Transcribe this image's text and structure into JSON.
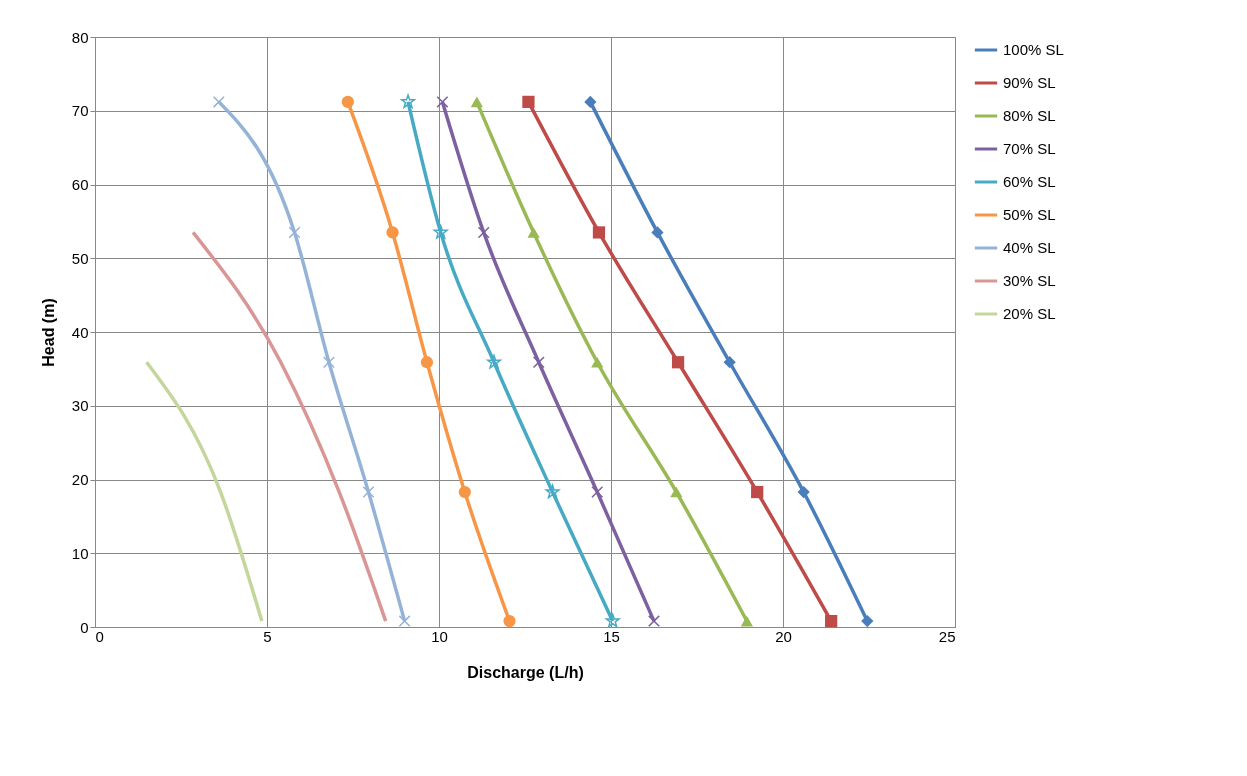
{
  "chart_data": {
    "type": "line",
    "xlabel": "Discharge (L/h)",
    "ylabel": "Head (m)",
    "xlim": [
      0,
      25
    ],
    "xticks": [
      0,
      5,
      10,
      15,
      20,
      25
    ],
    "ylim": [
      0,
      80
    ],
    "yticks": [
      0,
      10,
      20,
      30,
      40,
      50,
      60,
      70,
      80
    ],
    "grid": true,
    "legend": "right",
    "series": [
      {
        "name": "100% SL",
        "color": "#4a7ebb",
        "marker": "diamond",
        "x": [
          14.4,
          16.35,
          18.45,
          20.6,
          22.45
        ],
        "values": [
          71.2,
          53.5,
          35.9,
          18.3,
          0.8
        ]
      },
      {
        "name": "90% SL",
        "color": "#be4b48",
        "marker": "square",
        "x": [
          12.6,
          14.65,
          16.95,
          19.25,
          21.4
        ],
        "values": [
          71.2,
          53.5,
          35.9,
          18.3,
          0.8
        ]
      },
      {
        "name": "80% SL",
        "color": "#98b954",
        "marker": "triangle",
        "x": [
          11.1,
          12.75,
          14.6,
          16.9,
          18.95
        ],
        "values": [
          71.2,
          53.5,
          35.9,
          18.3,
          0.8
        ]
      },
      {
        "name": "70% SL",
        "color": "#7d60a0",
        "marker": "cross",
        "x": [
          10.1,
          11.3,
          12.9,
          14.6,
          16.25
        ],
        "values": [
          71.2,
          53.5,
          35.9,
          18.3,
          0.8
        ]
      },
      {
        "name": "60% SL",
        "color": "#46aac5",
        "marker": "star",
        "x": [
          9.1,
          10.05,
          11.6,
          13.3,
          15.05
        ],
        "values": [
          71.2,
          53.5,
          35.9,
          18.3,
          0.8
        ]
      },
      {
        "name": "50% SL",
        "color": "#f79646",
        "marker": "circle",
        "x": [
          7.35,
          8.65,
          9.65,
          10.75,
          12.05
        ],
        "values": [
          71.2,
          53.5,
          35.9,
          18.3,
          0.8
        ]
      },
      {
        "name": "40% SL",
        "color": "#95b3d7",
        "marker": "cross",
        "x": [
          3.6,
          5.8,
          6.8,
          7.95,
          9.0
        ],
        "values": [
          71.2,
          53.5,
          35.9,
          18.3,
          0.8
        ]
      },
      {
        "name": "30% SL",
        "color": "#d99694",
        "marker": "none",
        "x": [
          2.85,
          5.4,
          7.1,
          8.45
        ],
        "values": [
          53.5,
          35.9,
          18.3,
          0.8
        ]
      },
      {
        "name": "20% SL",
        "color": "#c3d69b",
        "marker": "none",
        "x": [
          1.5,
          3.65,
          4.85
        ],
        "values": [
          35.9,
          18.3,
          0.8
        ]
      }
    ]
  }
}
